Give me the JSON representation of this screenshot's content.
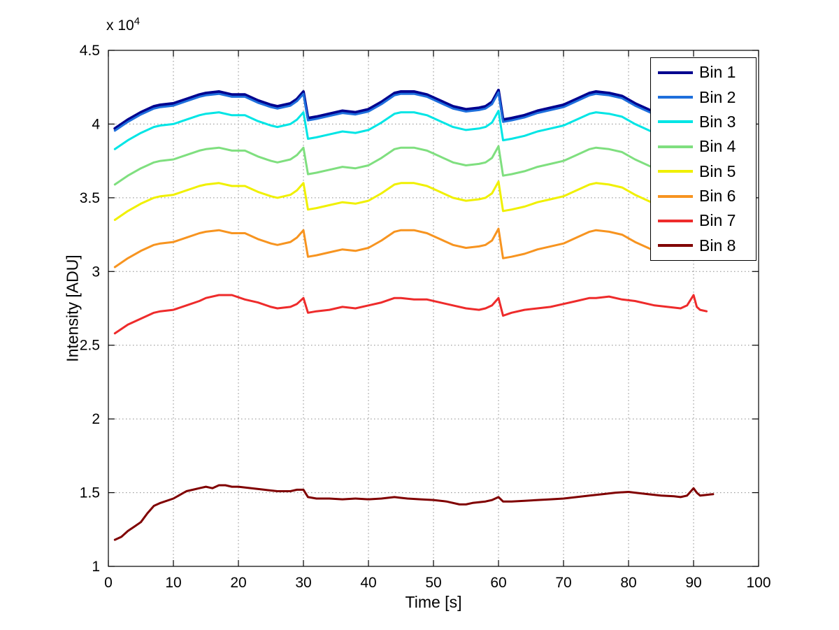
{
  "figure": {
    "background": "#ffffff",
    "y_multiplier_base": "x 10",
    "y_multiplier_exp": "4"
  },
  "chart_data": {
    "type": "line",
    "title": "",
    "xlabel": "Time [s]",
    "ylabel": "Intensity [ADU]",
    "xlim": [
      0,
      100
    ],
    "ylim": [
      1,
      4.5
    ],
    "y_unit_multiplier": 10000,
    "xticks": [
      0,
      10,
      20,
      30,
      40,
      50,
      60,
      70,
      80,
      90,
      100
    ],
    "yticks": [
      1,
      1.5,
      2,
      2.5,
      3,
      3.5,
      4,
      4.5
    ],
    "grid": true,
    "legend_position": "top-right",
    "x": [
      1,
      3,
      5,
      7,
      8,
      10,
      12,
      14,
      15,
      17,
      19,
      21,
      23,
      25,
      26,
      28,
      29,
      30,
      30.7,
      32,
      34,
      36,
      38,
      40,
      42,
      44,
      45,
      47,
      49,
      51,
      53,
      55,
      57,
      58,
      59,
      60,
      60.7,
      62,
      64,
      66,
      68,
      70,
      72,
      74,
      75,
      77,
      79,
      81,
      83,
      84
    ],
    "series": [
      {
        "name": "Bin 1",
        "color": "#00008F",
        "width": 4,
        "y": [
          3.97,
          4.03,
          4.08,
          4.12,
          4.13,
          4.14,
          4.17,
          4.2,
          4.21,
          4.22,
          4.2,
          4.2,
          4.16,
          4.13,
          4.12,
          4.14,
          4.17,
          4.22,
          4.04,
          4.05,
          4.07,
          4.09,
          4.08,
          4.1,
          4.15,
          4.21,
          4.22,
          4.22,
          4.2,
          4.16,
          4.12,
          4.1,
          4.11,
          4.12,
          4.15,
          4.23,
          4.03,
          4.04,
          4.06,
          4.09,
          4.11,
          4.13,
          4.17,
          4.21,
          4.22,
          4.21,
          4.19,
          4.14,
          4.1,
          4.08
        ]
      },
      {
        "name": "Bin 2",
        "color": "#1E6FDC",
        "width": 3,
        "y": [
          3.955,
          4.015,
          4.065,
          4.105,
          4.115,
          4.125,
          4.155,
          4.185,
          4.195,
          4.205,
          4.185,
          4.185,
          4.145,
          4.115,
          4.105,
          4.125,
          4.155,
          4.205,
          4.025,
          4.035,
          4.055,
          4.075,
          4.065,
          4.085,
          4.135,
          4.195,
          4.205,
          4.205,
          4.185,
          4.145,
          4.105,
          4.085,
          4.095,
          4.105,
          4.135,
          4.215,
          4.015,
          4.025,
          4.045,
          4.075,
          4.095,
          4.115,
          4.155,
          4.195,
          4.205,
          4.195,
          4.175,
          4.125,
          4.085,
          4.065
        ]
      },
      {
        "name": "Bin 3",
        "color": "#00E5E5",
        "width": 3,
        "y": [
          3.83,
          3.89,
          3.94,
          3.98,
          3.99,
          4.0,
          4.03,
          4.06,
          4.07,
          4.08,
          4.06,
          4.06,
          4.02,
          3.99,
          3.98,
          4.0,
          4.03,
          4.08,
          3.9,
          3.91,
          3.93,
          3.95,
          3.94,
          3.96,
          4.01,
          4.07,
          4.08,
          4.08,
          4.06,
          4.02,
          3.98,
          3.96,
          3.97,
          3.98,
          4.01,
          4.09,
          3.89,
          3.9,
          3.92,
          3.95,
          3.97,
          3.99,
          4.03,
          4.07,
          4.08,
          4.07,
          4.05,
          4.0,
          3.96,
          3.94
        ]
      },
      {
        "name": "Bin 4",
        "color": "#7FDF7F",
        "width": 3,
        "y": [
          3.59,
          3.65,
          3.7,
          3.74,
          3.75,
          3.76,
          3.79,
          3.82,
          3.83,
          3.84,
          3.82,
          3.82,
          3.78,
          3.75,
          3.74,
          3.76,
          3.79,
          3.84,
          3.66,
          3.67,
          3.69,
          3.71,
          3.7,
          3.72,
          3.77,
          3.83,
          3.84,
          3.84,
          3.82,
          3.78,
          3.74,
          3.72,
          3.73,
          3.74,
          3.77,
          3.85,
          3.65,
          3.66,
          3.68,
          3.71,
          3.73,
          3.75,
          3.79,
          3.83,
          3.84,
          3.83,
          3.81,
          3.76,
          3.72,
          3.7
        ]
      },
      {
        "name": "Bin 5",
        "color": "#F0F000",
        "width": 3,
        "y": [
          3.35,
          3.41,
          3.46,
          3.5,
          3.51,
          3.52,
          3.55,
          3.58,
          3.59,
          3.6,
          3.58,
          3.58,
          3.54,
          3.51,
          3.5,
          3.52,
          3.55,
          3.6,
          3.42,
          3.43,
          3.45,
          3.47,
          3.46,
          3.48,
          3.53,
          3.59,
          3.6,
          3.6,
          3.58,
          3.54,
          3.5,
          3.48,
          3.49,
          3.5,
          3.53,
          3.61,
          3.41,
          3.42,
          3.44,
          3.47,
          3.49,
          3.51,
          3.55,
          3.59,
          3.6,
          3.59,
          3.57,
          3.52,
          3.48,
          3.46
        ]
      },
      {
        "name": "Bin 6",
        "color": "#F79420",
        "width": 3,
        "y": [
          3.03,
          3.09,
          3.14,
          3.18,
          3.19,
          3.2,
          3.23,
          3.26,
          3.27,
          3.28,
          3.26,
          3.26,
          3.22,
          3.19,
          3.18,
          3.2,
          3.23,
          3.28,
          3.1,
          3.11,
          3.13,
          3.15,
          3.14,
          3.16,
          3.21,
          3.27,
          3.28,
          3.28,
          3.26,
          3.22,
          3.18,
          3.16,
          3.17,
          3.18,
          3.21,
          3.29,
          3.09,
          3.1,
          3.12,
          3.15,
          3.17,
          3.19,
          3.23,
          3.27,
          3.28,
          3.27,
          3.25,
          3.2,
          3.16,
          3.14
        ]
      },
      {
        "name": "Bin 7",
        "color": "#EE2B2B",
        "width": 3,
        "x": [
          1,
          3,
          5,
          7,
          8,
          10,
          12,
          14,
          15,
          17,
          19,
          21,
          23,
          25,
          26,
          28,
          29,
          30,
          30.7,
          32,
          34,
          36,
          38,
          40,
          42,
          44,
          45,
          47,
          49,
          51,
          53,
          55,
          57,
          58,
          59,
          60,
          60.7,
          62,
          64,
          66,
          68,
          70,
          72,
          74,
          75,
          77,
          79,
          81,
          83,
          84,
          86,
          88,
          89,
          90,
          90.5,
          91,
          92
        ],
        "y": [
          2.58,
          2.64,
          2.68,
          2.72,
          2.73,
          2.74,
          2.77,
          2.8,
          2.82,
          2.84,
          2.84,
          2.81,
          2.79,
          2.76,
          2.75,
          2.76,
          2.78,
          2.82,
          2.72,
          2.73,
          2.74,
          2.76,
          2.75,
          2.77,
          2.79,
          2.82,
          2.82,
          2.81,
          2.81,
          2.79,
          2.77,
          2.75,
          2.74,
          2.75,
          2.77,
          2.82,
          2.7,
          2.72,
          2.74,
          2.75,
          2.76,
          2.78,
          2.8,
          2.82,
          2.82,
          2.83,
          2.81,
          2.8,
          2.78,
          2.77,
          2.76,
          2.75,
          2.77,
          2.84,
          2.76,
          2.74,
          2.73
        ]
      },
      {
        "name": "Bin 8",
        "color": "#800000",
        "width": 3,
        "x": [
          1,
          2,
          3,
          4,
          5,
          6,
          7,
          8,
          10,
          12,
          13,
          14,
          15,
          16,
          17,
          18,
          19,
          20,
          22,
          24,
          26,
          28,
          29,
          30,
          30.7,
          32,
          34,
          36,
          38,
          40,
          42,
          44,
          45,
          46,
          48,
          50,
          52,
          54,
          55,
          56,
          58,
          59,
          60,
          60.7,
          62,
          64,
          66,
          68,
          70,
          72,
          74,
          76,
          78,
          80,
          81,
          83,
          85,
          87,
          88,
          89,
          90,
          90.5,
          91,
          92,
          93
        ],
        "y": [
          1.18,
          1.2,
          1.24,
          1.27,
          1.3,
          1.36,
          1.41,
          1.43,
          1.46,
          1.51,
          1.52,
          1.53,
          1.54,
          1.53,
          1.55,
          1.55,
          1.54,
          1.54,
          1.53,
          1.52,
          1.51,
          1.51,
          1.52,
          1.52,
          1.47,
          1.46,
          1.46,
          1.455,
          1.46,
          1.455,
          1.46,
          1.47,
          1.465,
          1.46,
          1.455,
          1.45,
          1.44,
          1.42,
          1.42,
          1.43,
          1.44,
          1.45,
          1.47,
          1.44,
          1.44,
          1.445,
          1.45,
          1.455,
          1.46,
          1.47,
          1.48,
          1.49,
          1.5,
          1.505,
          1.5,
          1.49,
          1.48,
          1.475,
          1.47,
          1.48,
          1.53,
          1.5,
          1.48,
          1.485,
          1.49
        ]
      }
    ]
  }
}
